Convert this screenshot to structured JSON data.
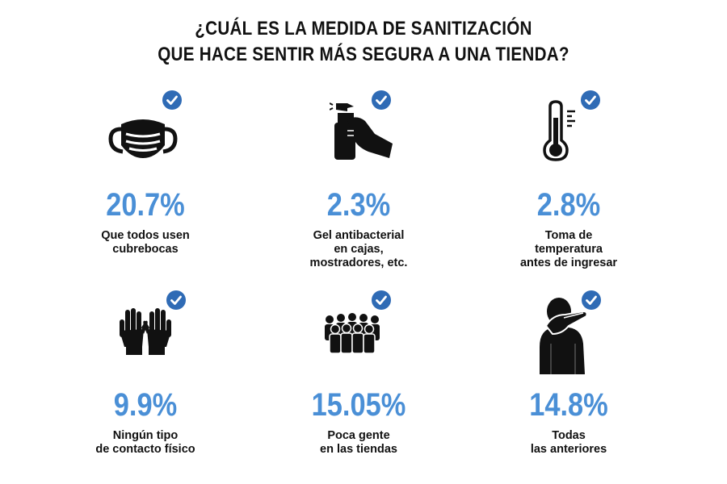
{
  "title": {
    "line1": "¿CUÁL ES LA MEDIDA DE SANITIZACIÓN",
    "line2": "QUE HACE SENTIR MÁS SEGURA A UNA TIENDA?"
  },
  "colors": {
    "accent": "#4a8fd6",
    "check": "#2f6bb5",
    "icon": "#111111"
  },
  "items": [
    {
      "icon": "face-mask-icon",
      "value": "20.7%",
      "label": [
        "Que todos usen",
        "cubrebocas"
      ]
    },
    {
      "icon": "hand-sanitizer-spray-icon",
      "value": "2.3%",
      "label": [
        "Gel antibacterial",
        "en cajas,",
        "mostradores, etc."
      ]
    },
    {
      "icon": "thermometer-icon",
      "value": "2.8%",
      "label": [
        "Toma de",
        "temperatura",
        "antes de ingresar"
      ]
    },
    {
      "icon": "gloves-icon",
      "value": "9.9%",
      "label": [
        "Ningún tipo",
        "de contacto físico"
      ]
    },
    {
      "icon": "crowd-icon",
      "value": "15.05%",
      "label": [
        "Poca gente",
        "en las tiendas"
      ]
    },
    {
      "icon": "sneeze-into-elbow-icon",
      "value": "14.8%",
      "label": [
        "Todas",
        "las anteriores"
      ]
    }
  ]
}
